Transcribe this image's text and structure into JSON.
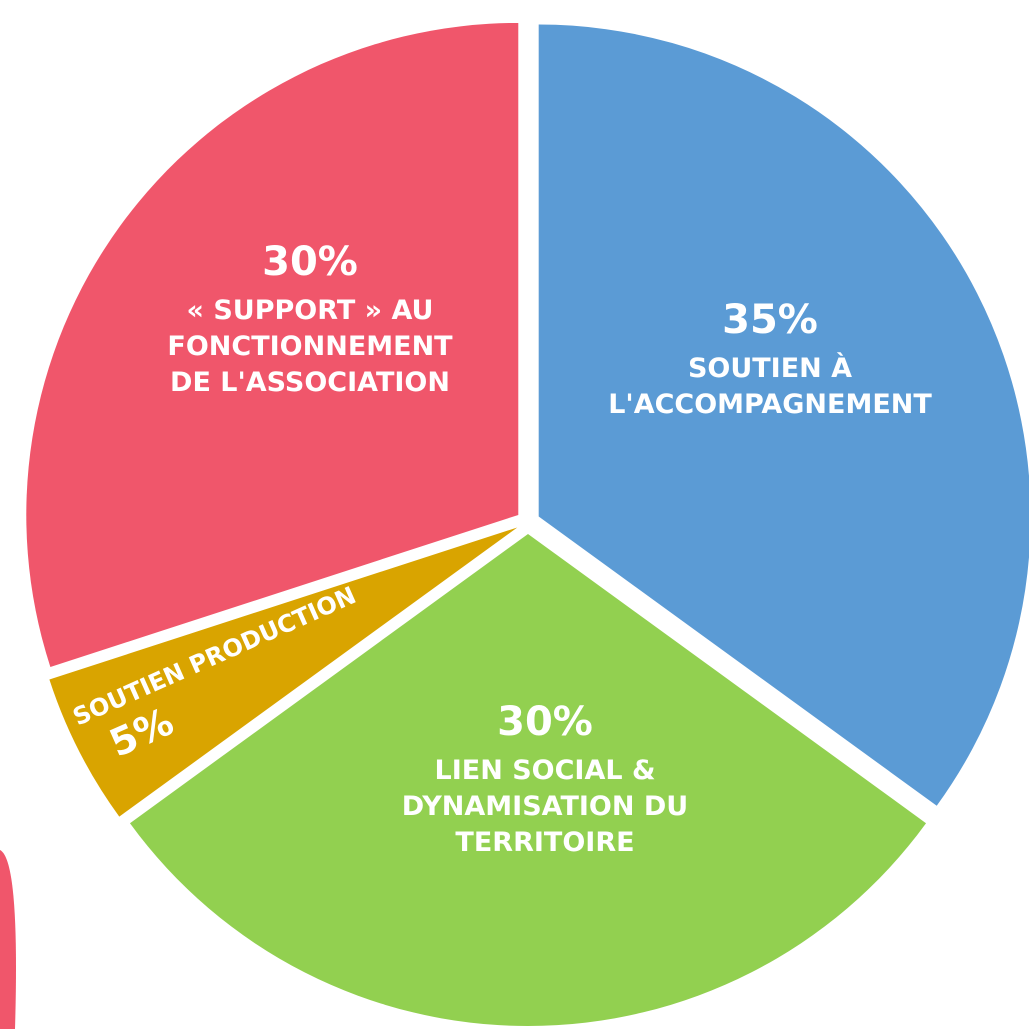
{
  "chart_data": {
    "type": "pie",
    "categories": [
      "SOUTIEN À L'ACCOMPAGNEMENT",
      "LIEN SOCIAL & DYNAMISATION DU TERRITOIRE",
      "SOUTIEN PRODUCTION",
      "« SUPPORT » AU FONCTIONNEMENT DE L'ASSOCIATION"
    ],
    "values": [
      35,
      30,
      5,
      30
    ],
    "value_labels": [
      "35%",
      "30%",
      "5%",
      "30%"
    ],
    "colors": [
      "#5b9bd5",
      "#92d050",
      "#d9a400",
      "#f0566b"
    ]
  }
}
